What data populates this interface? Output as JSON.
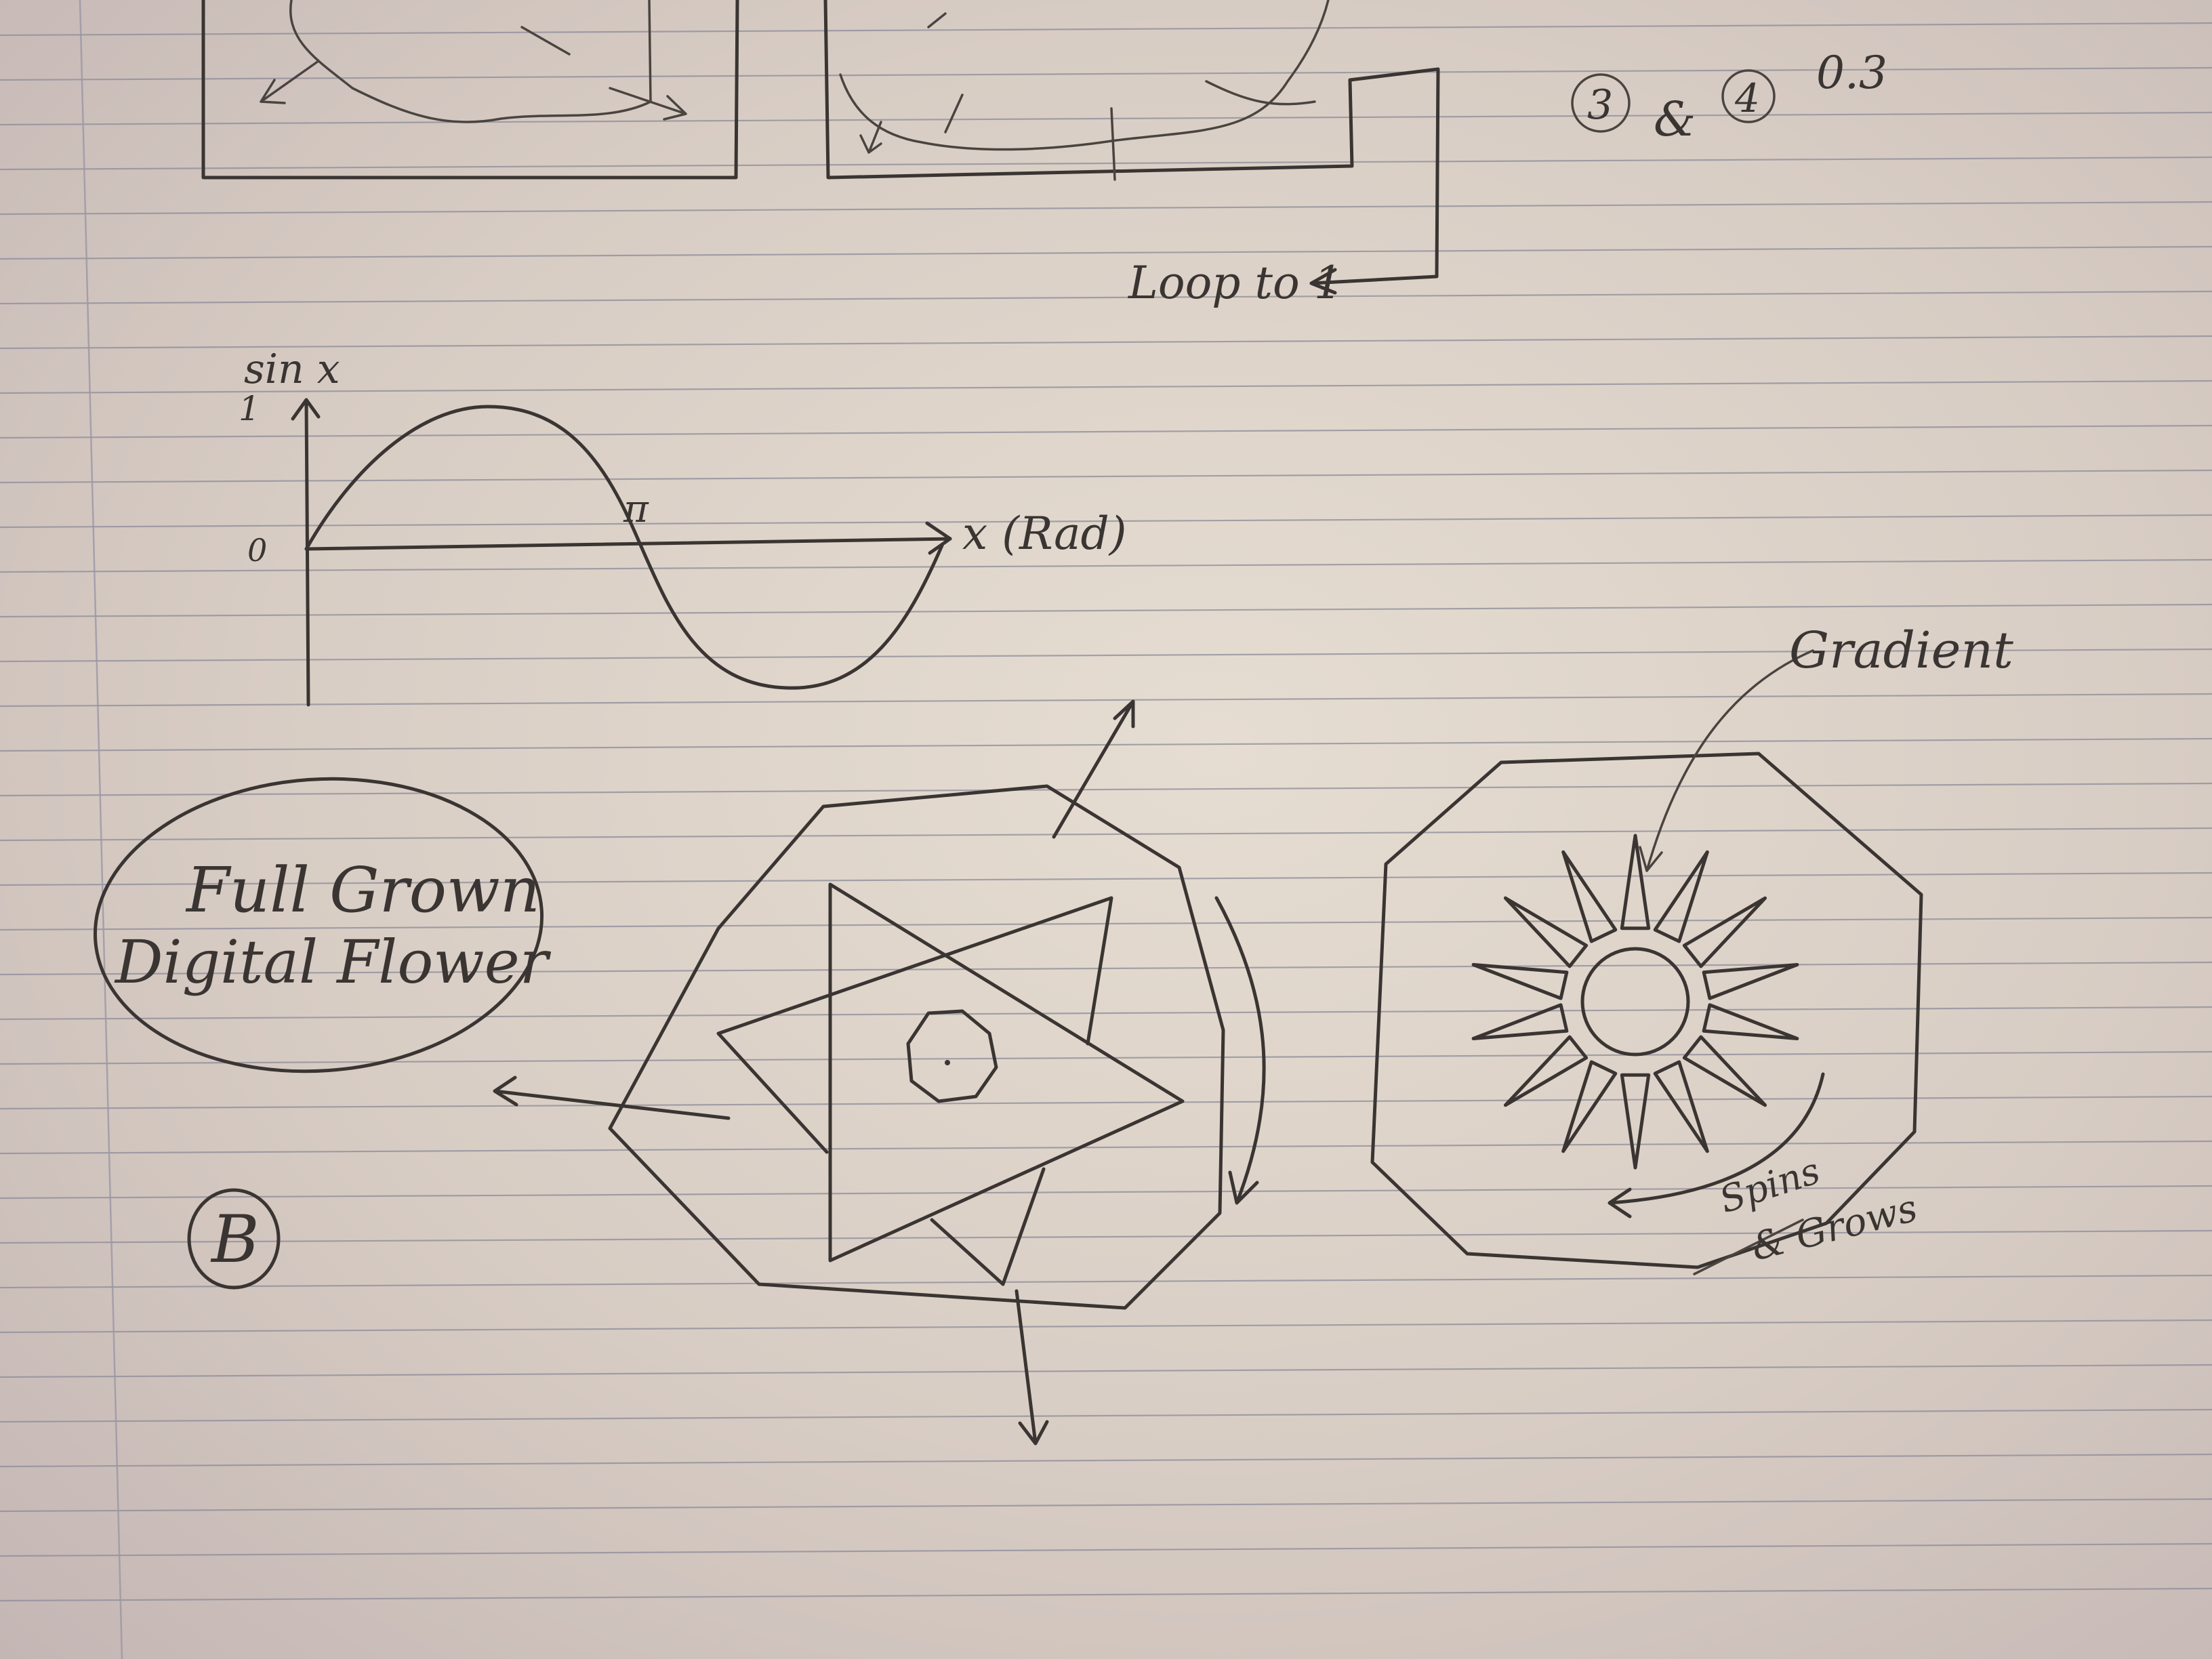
{
  "notes": {
    "circled_numbers": [
      "3",
      "4"
    ],
    "value_top_right": "0.3",
    "loop_label": "Loop to 1",
    "sin_axis_label": "sin x",
    "sin_one_tick": "1",
    "sin_zero_tick": "0",
    "pi_label": "π",
    "x_axis_label": "x (Rad)",
    "oval_line1": "Full Grown",
    "oval_line2": "Digital Flower",
    "circled_letter": "B",
    "gradient_label": "Gradient",
    "spins_line1": "Spins",
    "spins_line2": "& Grows"
  },
  "colors": {
    "ink": "#3a3532",
    "paper": "#e6ddd2",
    "rule_line": "#8d8c9a"
  }
}
